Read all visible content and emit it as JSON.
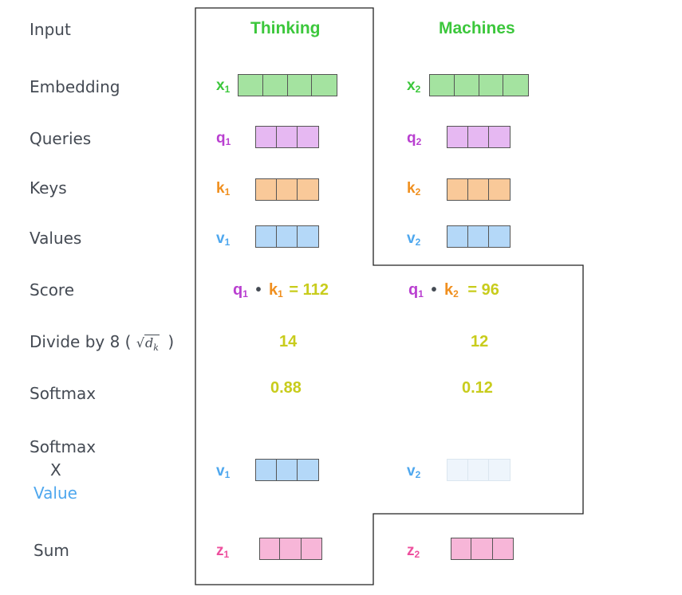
{
  "colors": {
    "green": "#3cc73c",
    "purple": "#b93fd0",
    "orange": "#f08f1e",
    "blue": "#4ea7ee",
    "pink": "#ee4f9e",
    "yellow": "#c8cc1c",
    "embedding_fill": "#a4e3a0",
    "query_fill": "#e6b8f2",
    "key_fill": "#f9c999",
    "value_fill": "#b4d8f8",
    "value_faded_fill": "#eef5fc",
    "sum_fill": "#f7b6d8"
  },
  "row_labels": {
    "input": "Input",
    "embedding": "Embedding",
    "queries": "Queries",
    "keys": "Keys",
    "values": "Values",
    "score": "Score",
    "divide_prefix": "Divide by 8 (",
    "divide_sqrt_base": "d",
    "divide_sqrt_sub": "k",
    "divide_suffix": ")",
    "softmax": "Softmax",
    "softmax_x_value_line1": "Softmax",
    "softmax_x_value_line2": "X",
    "softmax_x_value_line3": "Value",
    "sum": "Sum"
  },
  "columns": [
    {
      "word": "Thinking",
      "x_label": "x",
      "x_sub": "1",
      "q_label": "q",
      "q_sub": "1",
      "k_label": "k",
      "k_sub": "1",
      "v_label": "v",
      "v_sub": "1",
      "score_q": "q",
      "score_q_sub": "1",
      "score_dot": "•",
      "score_k": "k",
      "score_k_sub": "1",
      "score_eq": "=",
      "score_value": "112",
      "divided": "14",
      "softmax": "0.88",
      "weighted_v_label": "v",
      "weighted_v_sub": "1",
      "z_label": "z",
      "z_sub": "1"
    },
    {
      "word": "Machines",
      "x_label": "x",
      "x_sub": "2",
      "q_label": "q",
      "q_sub": "2",
      "k_label": "k",
      "k_sub": "2",
      "v_label": "v",
      "v_sub": "2",
      "score_q": "q",
      "score_q_sub": "1",
      "score_dot": "•",
      "score_k": "k",
      "score_k_sub": "2",
      "score_eq": "=",
      "score_value": "96",
      "divided": "12",
      "softmax": "0.12",
      "weighted_v_label": "v",
      "weighted_v_sub": "2",
      "z_label": "z",
      "z_sub": "2"
    }
  ]
}
